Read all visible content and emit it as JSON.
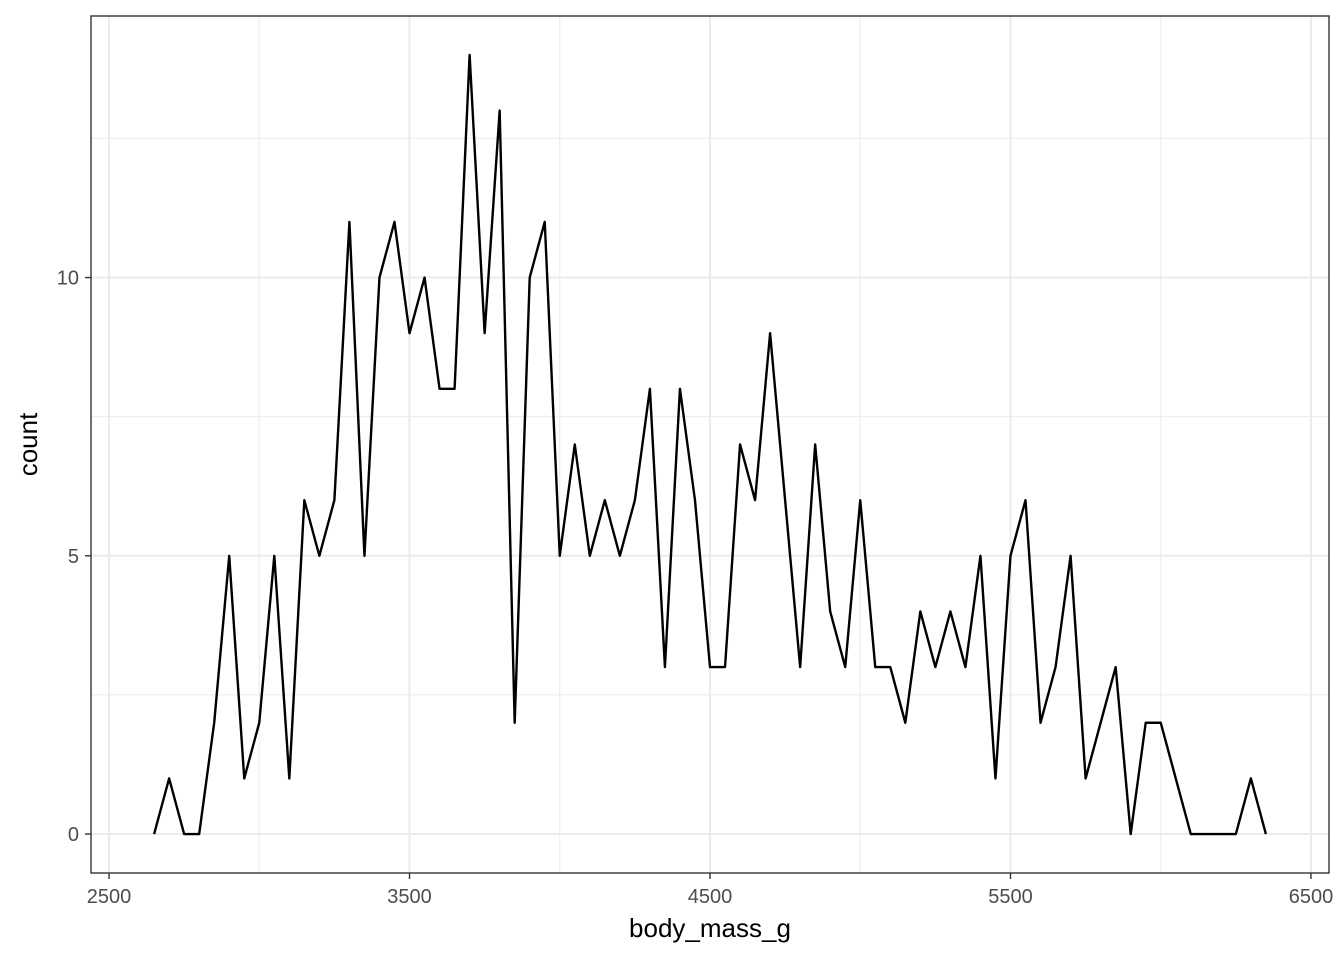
{
  "chart_data": {
    "type": "line",
    "title": "",
    "xlabel": "body_mass_g",
    "ylabel": "count",
    "xlim": [
      2440,
      6560
    ],
    "ylim": [
      -0.7,
      14.7
    ],
    "x_ticks": [
      2500,
      3500,
      4500,
      5500,
      6500
    ],
    "x_tick_labels": [
      "2500",
      "3500",
      "4500",
      "5500",
      "6500"
    ],
    "y_ticks": [
      0,
      5,
      10
    ],
    "y_tick_labels": [
      "0",
      "5",
      "10"
    ],
    "x_minor_ticks": [
      3000,
      4000,
      5000,
      6000
    ],
    "y_minor_ticks": [
      2.5,
      7.5,
      12.5
    ],
    "grid": true,
    "legend": "none",
    "colors": {
      "line": "#000000",
      "grid": "#ebebeb",
      "panel_border": "#333333",
      "tick_label": "#4d4d4d"
    },
    "series": [
      {
        "x": [
          2650,
          2700,
          2750,
          2800,
          2850,
          2900,
          2950,
          3000,
          3050,
          3100,
          3150,
          3200,
          3250,
          3300,
          3350,
          3400,
          3450,
          3500,
          3550,
          3600,
          3650,
          3700,
          3750,
          3800,
          3850,
          3900,
          3950,
          4000,
          4050,
          4100,
          4150,
          4200,
          4250,
          4300,
          4350,
          4400,
          4450,
          4500,
          4550,
          4600,
          4650,
          4700,
          4750,
          4800,
          4850,
          4900,
          4950,
          5000,
          5050,
          5100,
          5150,
          5200,
          5250,
          5300,
          5350,
          5400,
          5450,
          5500,
          5550,
          5600,
          5650,
          5700,
          5750,
          5800,
          5850,
          5900,
          5950,
          6000,
          6050,
          6100,
          6150,
          6200,
          6250,
          6300,
          6350
        ],
        "y": [
          0,
          1,
          0,
          0,
          2,
          5,
          1,
          2,
          5,
          1,
          6,
          5,
          6,
          11,
          5,
          10,
          11,
          9,
          10,
          8,
          8,
          14,
          9,
          13,
          2,
          10,
          11,
          5,
          7,
          5,
          6,
          5,
          6,
          8,
          3,
          8,
          6,
          3,
          3,
          7,
          6,
          9,
          6,
          3,
          7,
          4,
          3,
          6,
          3,
          3,
          2,
          4,
          3,
          4,
          3,
          5,
          1,
          5,
          6,
          2,
          3,
          5,
          1,
          2,
          3,
          0,
          2,
          2,
          1,
          0,
          0,
          0,
          0,
          1,
          0
        ]
      }
    ]
  }
}
